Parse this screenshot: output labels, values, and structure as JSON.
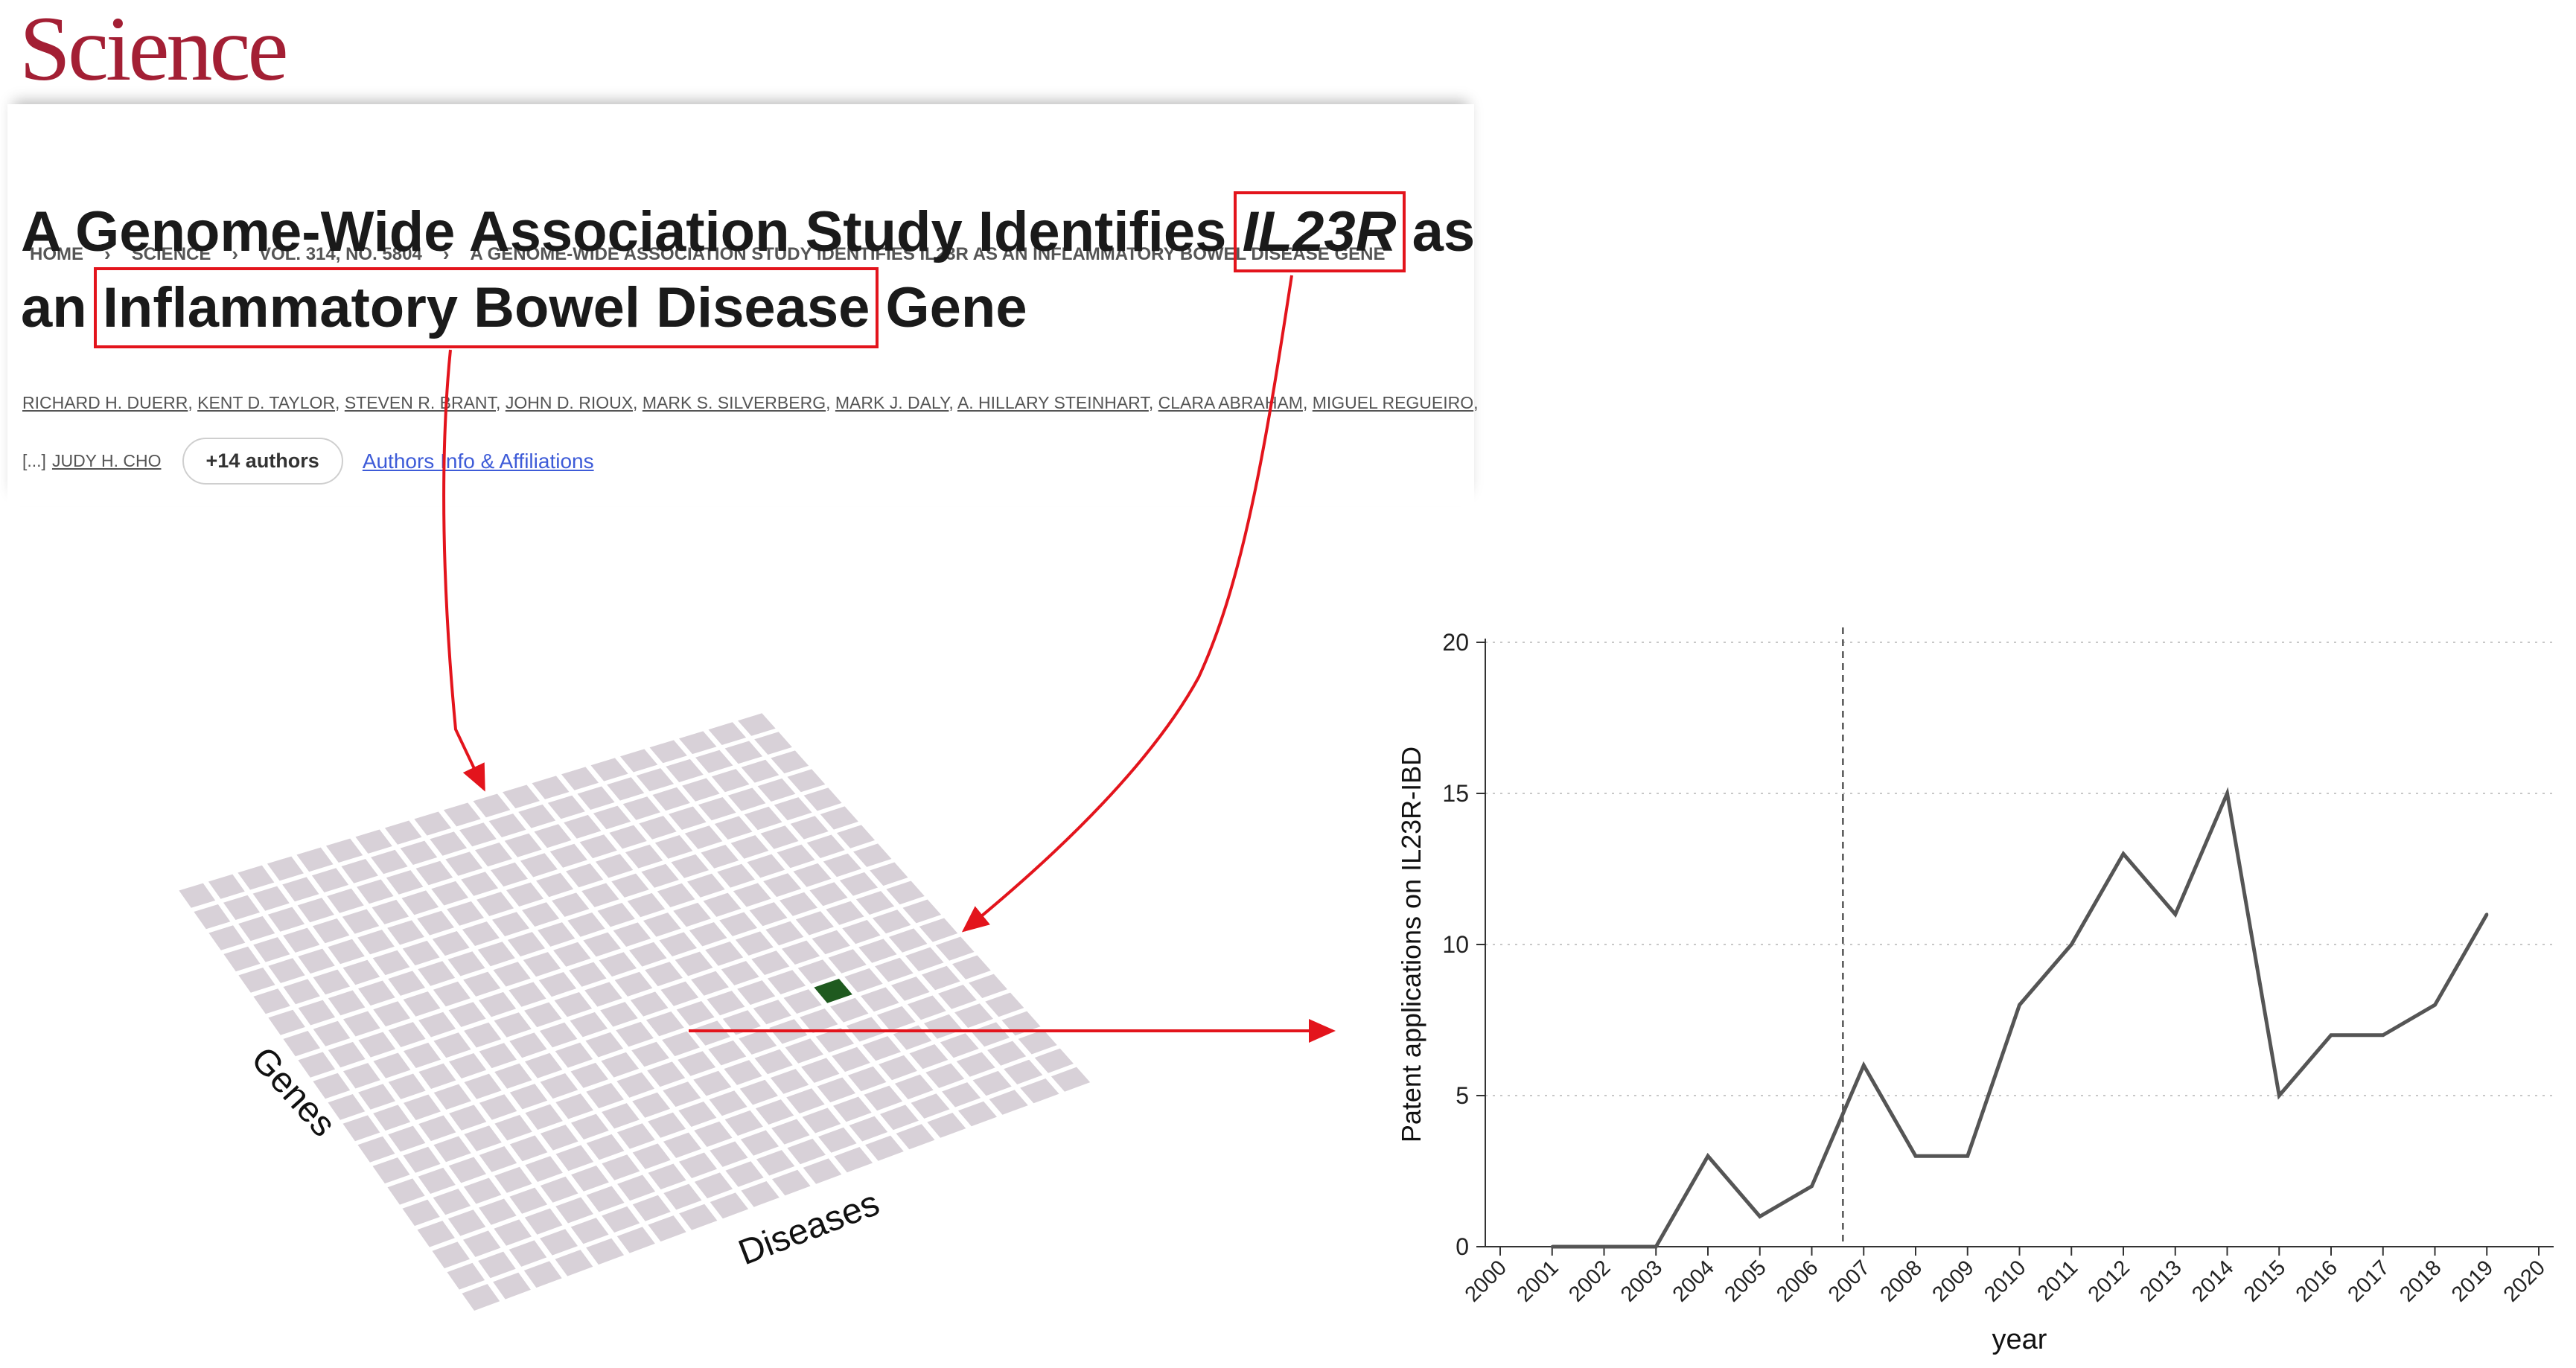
{
  "logo": "Science",
  "breadcrumb": [
    "HOME",
    "SCIENCE",
    "VOL. 314, NO. 5804",
    "A GENOME-WIDE ASSOCIATION STUDY IDENTIFIES IL23R AS AN INFLAMMATORY BOWEL DISEASE GENE"
  ],
  "title": {
    "line1_pre": "A Genome-Wide Association Study Identifies ",
    "gene": "IL23R",
    "line1_post": " as",
    "line2_pre": "an ",
    "disease": "Inflammatory Bowel Disease",
    "line2_post": " Gene"
  },
  "authors": [
    "RICHARD H. DUERR",
    "KENT D. TAYLOR",
    "STEVEN R. BRANT",
    "JOHN D. RIOUX",
    "MARK S. SILVERBERG",
    "MARK J. DALY",
    "A. HILLARY STEINHART",
    "CLARA ABRAHAM",
    "MIGUEL REGUEIRO"
  ],
  "authors_row2": {
    "ellipsis": "[...]",
    "last_author": "JUDY H. CHO",
    "more_button": "+14 authors",
    "affiliations_link": "Authors Info & Affiliations"
  },
  "grid": {
    "axis_genes": "Genes",
    "axis_diseases": "Diseases",
    "cell_color": "#d8d1d8",
    "highlight_color": "#1f5a1f"
  },
  "colors": {
    "arrow": "#e3141c",
    "brand": "#a31f34"
  },
  "chart_data": {
    "type": "line",
    "xlabel": "year",
    "ylabel": "Patent applications on IL23R-IBD",
    "ylim": [
      0,
      20
    ],
    "yticks": [
      0,
      5,
      10,
      15,
      20
    ],
    "xticks": [
      "2000",
      "2001",
      "2002",
      "2003",
      "2004",
      "2005",
      "2006",
      "2007",
      "2008",
      "2009",
      "2010",
      "2011",
      "2012",
      "2013",
      "2014",
      "2015",
      "2016",
      "2017",
      "2018",
      "2019",
      "2020"
    ],
    "x": [
      2001,
      2002,
      2003,
      2004,
      2005,
      2006,
      2007,
      2008,
      2009,
      2010,
      2011,
      2012,
      2013,
      2014,
      2015,
      2016,
      2017,
      2018,
      2019
    ],
    "values": [
      0,
      0,
      0,
      3,
      1,
      2,
      6,
      3,
      3,
      8,
      10,
      13,
      11,
      15,
      5,
      7,
      7,
      8,
      11
    ],
    "vline_year": 2006.6,
    "grid": "horizontal dotted",
    "line_color": "#555555"
  }
}
